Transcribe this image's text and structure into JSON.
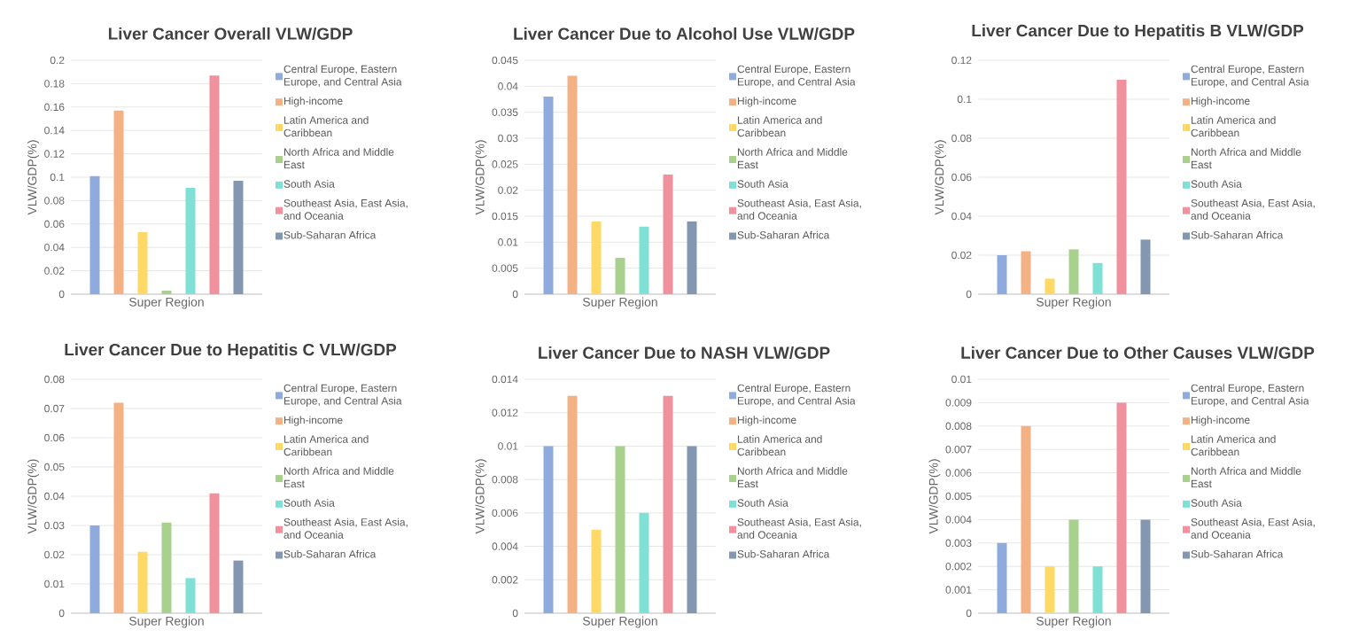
{
  "chart_data": [
    {
      "type": "bar",
      "title": "Liver Cancer Overall VLW/GDP",
      "xlabel": "Super Region",
      "ylabel": "VLW/GDP(%)",
      "categories": [
        null
      ],
      "grid": "y",
      "legend": "right",
      "ylim": [
        0,
        0.2
      ],
      "yticks": [
        0,
        0.02,
        0.04,
        0.06,
        0.08,
        0.1,
        0.12,
        0.14,
        0.16,
        0.18,
        0.2
      ],
      "series": [
        {
          "name": "Central Europe, Eastern Europe, and Central Asia",
          "color": "#8faadc",
          "values": [
            0.101
          ]
        },
        {
          "name": "High-income",
          "color": "#f4b183",
          "values": [
            0.157
          ]
        },
        {
          "name": "Latin America and Caribbean",
          "color": "#ffd966",
          "values": [
            0.053
          ]
        },
        {
          "name": "North Africa and Middle East",
          "color": "#a9d18e",
          "values": [
            0.003
          ]
        },
        {
          "name": "South Asia",
          "color": "#7fe0d6",
          "values": [
            0.091
          ]
        },
        {
          "name": "Southeast Asia, East Asia, and Oceania",
          "color": "#f0919d",
          "values": [
            0.187
          ]
        },
        {
          "name": "Sub-Saharan Africa",
          "color": "#8497b0",
          "values": [
            0.097
          ]
        }
      ]
    },
    {
      "type": "bar",
      "title": "Liver Cancer Due to Alcohol Use VLW/GDP",
      "xlabel": "Super Region",
      "ylabel": "VLW/GDP(%)",
      "categories": [
        null
      ],
      "grid": "y",
      "legend": "right",
      "ylim": [
        0,
        0.045
      ],
      "yticks": [
        0,
        0.005,
        0.01,
        0.015,
        0.02,
        0.025,
        0.03,
        0.035,
        0.04,
        0.045
      ],
      "series": [
        {
          "name": "Central Europe, Eastern Europe, and Central Asia",
          "color": "#8faadc",
          "values": [
            0.038
          ]
        },
        {
          "name": "High-income",
          "color": "#f4b183",
          "values": [
            0.042
          ]
        },
        {
          "name": "Latin America and Caribbean",
          "color": "#ffd966",
          "values": [
            0.014
          ]
        },
        {
          "name": "North Africa and Middle East",
          "color": "#a9d18e",
          "values": [
            0.007
          ]
        },
        {
          "name": "South Asia",
          "color": "#7fe0d6",
          "values": [
            0.013
          ]
        },
        {
          "name": "Southeast Asia, East Asia, and Oceania",
          "color": "#f0919d",
          "values": [
            0.023
          ]
        },
        {
          "name": "Sub-Saharan Africa",
          "color": "#8497b0",
          "values": [
            0.014
          ]
        }
      ]
    },
    {
      "type": "bar",
      "title": "Liver Cancer Due to Hepatitis B VLW/GDP",
      "xlabel": "Super Region",
      "ylabel": "VLW/GDP(%)",
      "categories": [
        null
      ],
      "grid": "y",
      "legend": "right",
      "ylim": [
        0,
        0.12
      ],
      "yticks": [
        0,
        0.02,
        0.04,
        0.06,
        0.08,
        0.1,
        0.12
      ],
      "series": [
        {
          "name": "Central Europe, Eastern Europe, and Central Asia",
          "color": "#8faadc",
          "values": [
            0.02
          ]
        },
        {
          "name": "High-income",
          "color": "#f4b183",
          "values": [
            0.022
          ]
        },
        {
          "name": "Latin America and Caribbean",
          "color": "#ffd966",
          "values": [
            0.008
          ]
        },
        {
          "name": "North Africa and Middle East",
          "color": "#a9d18e",
          "values": [
            0.023
          ]
        },
        {
          "name": "South Asia",
          "color": "#7fe0d6",
          "values": [
            0.016
          ]
        },
        {
          "name": "Southeast Asia, East Asia, and Oceania",
          "color": "#f0919d",
          "values": [
            0.11
          ]
        },
        {
          "name": "Sub-Saharan Africa",
          "color": "#8497b0",
          "values": [
            0.028
          ]
        }
      ]
    },
    {
      "type": "bar",
      "title": "Liver Cancer Due to Hepatitis C VLW/GDP",
      "xlabel": "Super Region",
      "ylabel": "VLW/GDP(%)",
      "categories": [
        null
      ],
      "grid": "y",
      "legend": "right",
      "ylim": [
        0,
        0.08
      ],
      "yticks": [
        0,
        0.01,
        0.02,
        0.03,
        0.04,
        0.05,
        0.06,
        0.07,
        0.08
      ],
      "series": [
        {
          "name": "Central Europe, Eastern Europe, and Central Asia",
          "color": "#8faadc",
          "values": [
            0.03
          ]
        },
        {
          "name": "High-income",
          "color": "#f4b183",
          "values": [
            0.072
          ]
        },
        {
          "name": "Latin America and Caribbean",
          "color": "#ffd966",
          "values": [
            0.021
          ]
        },
        {
          "name": "North Africa and Middle East",
          "color": "#a9d18e",
          "values": [
            0.031
          ]
        },
        {
          "name": "South Asia",
          "color": "#7fe0d6",
          "values": [
            0.012
          ]
        },
        {
          "name": "Southeast Asia, East Asia, and Oceania",
          "color": "#f0919d",
          "values": [
            0.041
          ]
        },
        {
          "name": "Sub-Saharan Africa",
          "color": "#8497b0",
          "values": [
            0.018
          ]
        }
      ]
    },
    {
      "type": "bar",
      "title": "Liver Cancer Due to NASH VLW/GDP",
      "xlabel": "Super Region",
      "ylabel": "VLW/GDP(%)",
      "categories": [
        null
      ],
      "grid": "y",
      "legend": "right",
      "ylim": [
        0,
        0.014
      ],
      "yticks": [
        0,
        0.002,
        0.004,
        0.006,
        0.008,
        0.01,
        0.012,
        0.014
      ],
      "series": [
        {
          "name": "Central Europe, Eastern Europe, and Central Asia",
          "color": "#8faadc",
          "values": [
            0.01
          ]
        },
        {
          "name": "High-income",
          "color": "#f4b183",
          "values": [
            0.013
          ]
        },
        {
          "name": "Latin America and Caribbean",
          "color": "#ffd966",
          "values": [
            0.005
          ]
        },
        {
          "name": "North Africa and Middle East",
          "color": "#a9d18e",
          "values": [
            0.01
          ]
        },
        {
          "name": "South Asia",
          "color": "#7fe0d6",
          "values": [
            0.006
          ]
        },
        {
          "name": "Southeast Asia, East Asia, and Oceania",
          "color": "#f0919d",
          "values": [
            0.013
          ]
        },
        {
          "name": "Sub-Saharan Africa",
          "color": "#8497b0",
          "values": [
            0.01
          ]
        }
      ]
    },
    {
      "type": "bar",
      "title": "Liver Cancer Due to Other Causes VLW/GDP",
      "xlabel": "Super Region",
      "ylabel": "VLW/GDP(%)",
      "categories": [
        null
      ],
      "grid": "y",
      "legend": "right",
      "ylim": [
        0,
        0.01
      ],
      "yticks": [
        0,
        0.001,
        0.002,
        0.003,
        0.004,
        0.005,
        0.006,
        0.007,
        0.008,
        0.009,
        0.01
      ],
      "series": [
        {
          "name": "Central Europe, Eastern Europe, and Central Asia",
          "color": "#8faadc",
          "values": [
            0.003
          ]
        },
        {
          "name": "High-income",
          "color": "#f4b183",
          "values": [
            0.008
          ]
        },
        {
          "name": "Latin America and Caribbean",
          "color": "#ffd966",
          "values": [
            0.002
          ]
        },
        {
          "name": "North Africa and Middle East",
          "color": "#a9d18e",
          "values": [
            0.004
          ]
        },
        {
          "name": "South Asia",
          "color": "#7fe0d6",
          "values": [
            0.002
          ]
        },
        {
          "name": "Southeast Asia, East Asia, and Oceania",
          "color": "#f0919d",
          "values": [
            0.009
          ]
        },
        {
          "name": "Sub-Saharan Africa",
          "color": "#8497b0",
          "values": [
            0.004
          ]
        }
      ]
    }
  ]
}
